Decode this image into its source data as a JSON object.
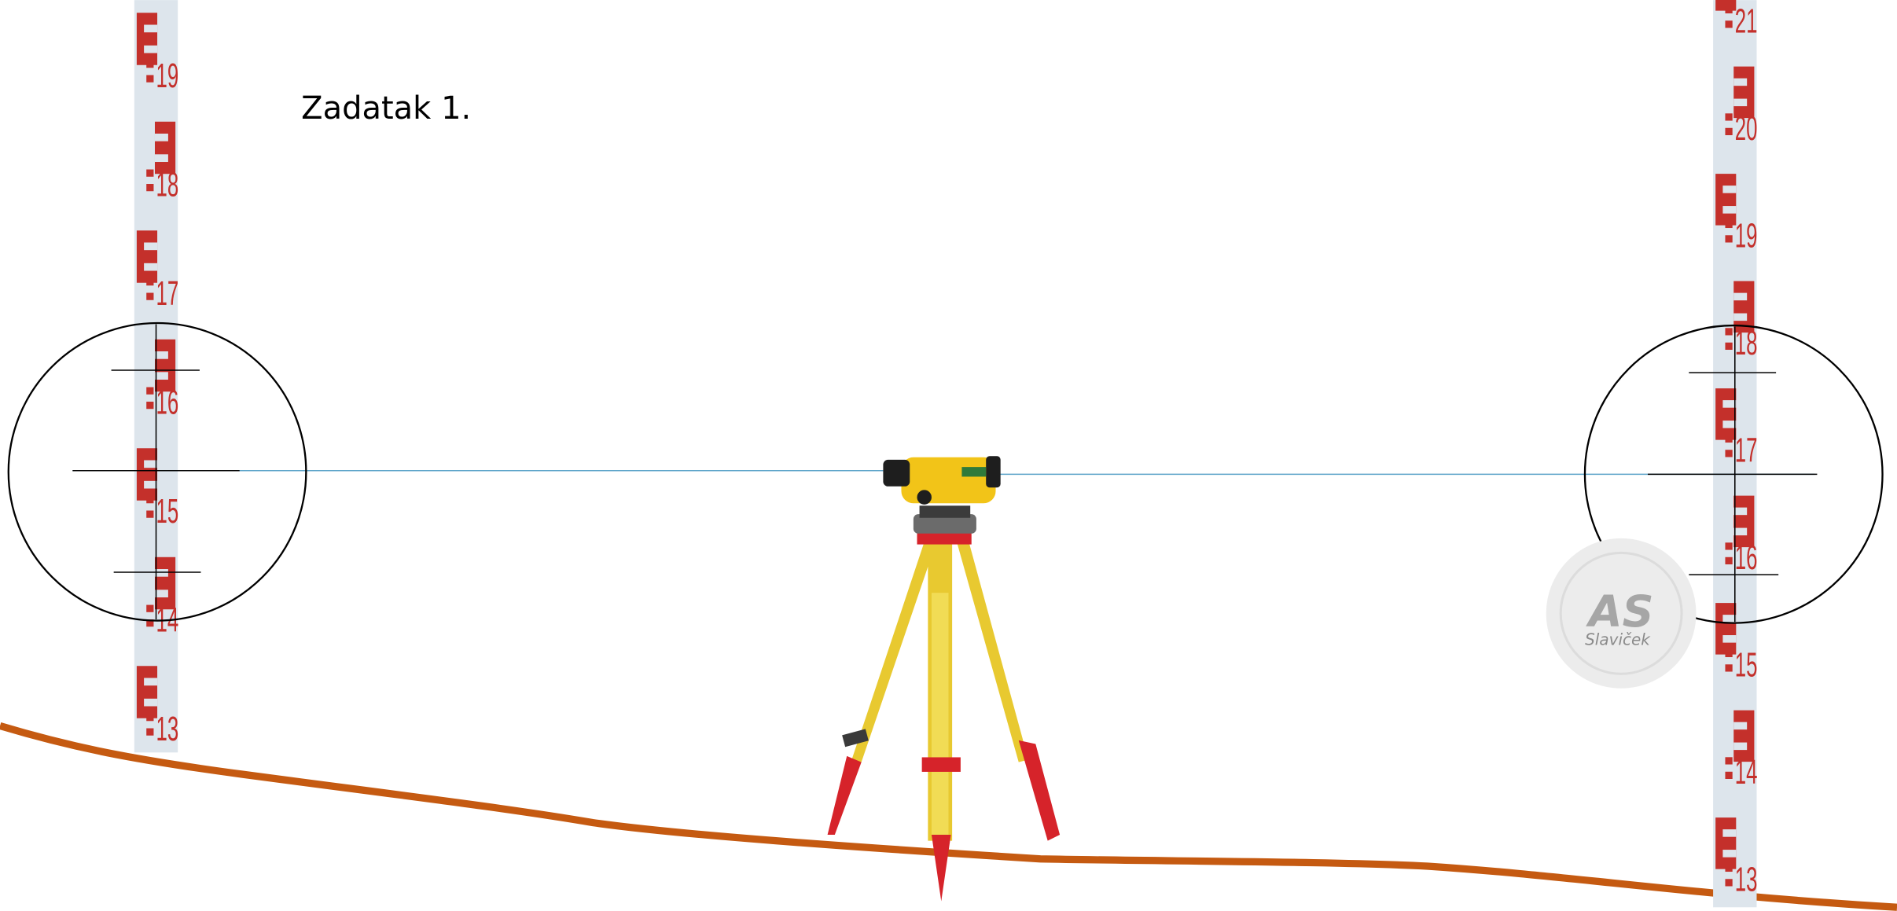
{
  "title": "Zadatak 1.",
  "left_rod": {
    "labels": [
      "19",
      "18",
      "17",
      "16",
      "15",
      "14",
      "13"
    ]
  },
  "right_rod": {
    "labels": [
      "21",
      "20",
      "19",
      "18",
      "17",
      "16",
      "15",
      "14",
      "13"
    ]
  },
  "watermark": {
    "logo": "AS",
    "name": "Slaviček"
  }
}
